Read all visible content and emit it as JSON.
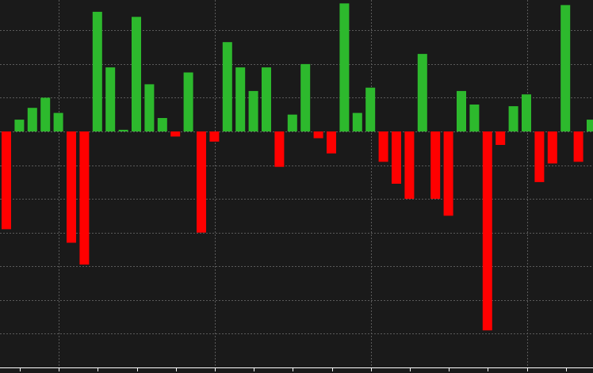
{
  "chart_data": {
    "type": "bar",
    "title": "",
    "xlabel": "",
    "ylabel": "",
    "grid": true,
    "ylim": [
      -1.4,
      0.78
    ],
    "colors": {
      "background": "#1a1a1a",
      "positive": "#2db92d",
      "negative": "#ff0000",
      "grid": "#5a5a5a",
      "axis": "#ffffff"
    },
    "values": [
      -0.58,
      0.07,
      0.14,
      0.2,
      0.11,
      -0.66,
      -0.79,
      0.71,
      0.38,
      0.01,
      0.68,
      0.28,
      0.08,
      -0.03,
      0.35,
      -0.6,
      -0.06,
      0.53,
      0.38,
      0.24,
      0.38,
      -0.21,
      0.1,
      0.4,
      -0.04,
      -0.13,
      0.76,
      0.11,
      0.26,
      -0.18,
      -0.31,
      -0.4,
      0.46,
      -0.4,
      -0.5,
      0.24,
      0.16,
      -1.18,
      -0.08,
      0.15,
      0.22,
      -0.3,
      -0.19,
      0.75,
      -0.18,
      0.07
    ]
  }
}
